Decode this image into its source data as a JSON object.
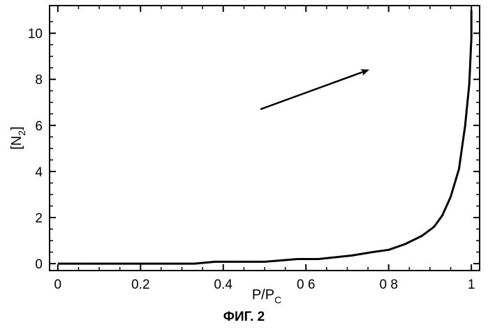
{
  "chart_data": {
    "type": "line",
    "title": "",
    "xlabel": "P/P",
    "xlabel_sub": "C",
    "ylabel": "[N",
    "ylabel_sub": "2",
    "ylabel_close": "]",
    "xlim": [
      -0.02,
      1.02
    ],
    "ylim": [
      -0.3,
      11.2
    ],
    "xticks": [
      0,
      0.2,
      0.4,
      0.6,
      0.8,
      1
    ],
    "xtick_labels": [
      "0",
      "0.2",
      "0.4",
      "0 6",
      "0 8",
      "1"
    ],
    "yticks": [
      0,
      2,
      4,
      6,
      8,
      10
    ],
    "ytick_labels": [
      "0",
      "2",
      "4",
      "6",
      "8",
      "10"
    ],
    "grid": false,
    "series": [
      {
        "x": [
          0,
          0.1,
          0.2,
          0.3,
          0.33,
          0.38,
          0.42,
          0.5,
          0.58,
          0.63,
          0.71,
          0.76,
          0.8,
          0.84,
          0.88,
          0.91,
          0.93,
          0.95,
          0.97,
          0.985,
          0.995,
          1.0,
          1.0
        ],
        "y": [
          0,
          0,
          0,
          0,
          0,
          0.08,
          0.08,
          0.08,
          0.2,
          0.2,
          0.35,
          0.5,
          0.6,
          0.85,
          1.2,
          1.6,
          2.1,
          2.9,
          4.1,
          6.0,
          7.8,
          9.8,
          11.0
        ]
      }
    ],
    "annotations": [
      {
        "type": "arrow",
        "from": [
          0.49,
          6.7
        ],
        "to": [
          0.75,
          8.4
        ]
      }
    ]
  },
  "caption": "ФИГ. 2"
}
